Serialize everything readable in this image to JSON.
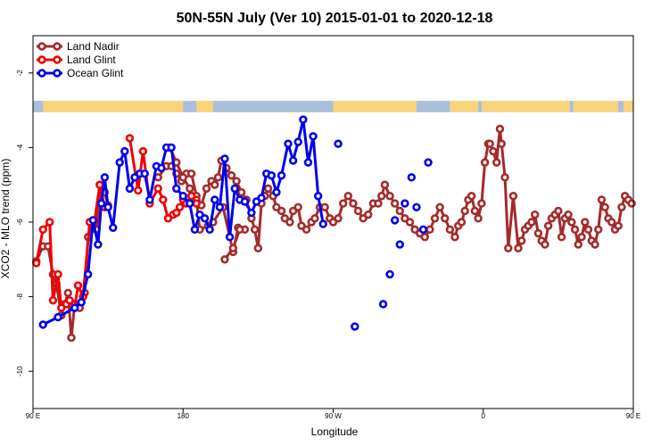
{
  "chart_data": {
    "type": "line",
    "title": "50N-55N July (Ver 10)   2015-01-01 to 2020-12-18",
    "xlabel": "Longitude",
    "ylabel": "XCO2 - MLO trend (ppm)",
    "xlim": [
      90,
      450
    ],
    "ylim": [
      -11,
      -1
    ],
    "x_ticks": [
      {
        "value": 90,
        "label": "90 E"
      },
      {
        "value": 180,
        "label": "180"
      },
      {
        "value": 270,
        "label": "90 W"
      },
      {
        "value": 360,
        "label": "0"
      },
      {
        "value": 450,
        "label": "90 E"
      },
      {
        "value": 540,
        "label": "180"
      }
    ],
    "y_ticks": [
      {
        "value": -2,
        "label": "-2"
      },
      {
        "value": -4,
        "label": "-4"
      },
      {
        "value": -6,
        "label": "-6"
      },
      {
        "value": -8,
        "label": "-8"
      },
      {
        "value": -10,
        "label": "-10"
      }
    ],
    "legend_position": "top-left",
    "land_band": {
      "y_top": -2.75,
      "y_bottom": -3.05,
      "land_color": "#f7d37a",
      "ocean_color": "#a9bfdc"
    },
    "series": [
      {
        "name": "Land Nadir",
        "color": "#a52a2a",
        "segments": [
          [
            [
              92,
              -7.05
            ],
            [
              96,
              -6.65
            ],
            [
              99,
              -6.65
            ],
            [
              102,
              -7.4
            ],
            [
              104,
              -7.65
            ],
            [
              107,
              -8.5
            ],
            [
              109,
              -8.2
            ],
            [
              111,
              -7.9
            ],
            [
              113,
              -9.1
            ],
            [
              115,
              -8.2
            ],
            [
              118,
              -8.3
            ],
            [
              121,
              -7.9
            ],
            [
              123,
              -6.4
            ],
            [
              126,
              -5.95
            ],
            [
              128,
              -6.2
            ],
            [
              131,
              -5.0
            ],
            [
              133,
              -5.2
            ],
            [
              135,
              -5.55
            ]
          ],
          [
            [
              165,
              -4.8
            ],
            [
              170,
              -4.5
            ],
            [
              173,
              -4.5
            ],
            [
              176,
              -4.7
            ],
            [
              179,
              -4.9
            ],
            [
              182,
              -4.7
            ],
            [
              185,
              -4.7
            ],
            [
              188,
              -5.3
            ],
            [
              191,
              -5.55
            ],
            [
              194,
              -5.1
            ],
            [
              197,
              -4.9
            ],
            [
              199,
              -5.0
            ],
            [
              201,
              -4.8
            ],
            [
              203,
              -4.35
            ],
            [
              206,
              -4.55
            ],
            [
              209,
              -4.75
            ],
            [
              212,
              -4.9
            ],
            [
              215,
              -5.2
            ],
            [
              218,
              -5.4
            ],
            [
              221,
              -5.9
            ],
            [
              223,
              -6.2
            ],
            [
              225,
              -6.7
            ],
            [
              227,
              -5.5
            ],
            [
              229,
              -5.3
            ],
            [
              231,
              -5.1
            ],
            [
              234,
              -5.3
            ],
            [
              236,
              -5.6
            ],
            [
              239,
              -5.7
            ],
            [
              241,
              -5.9
            ],
            [
              244,
              -6.0
            ],
            [
              246,
              -5.7
            ],
            [
              249,
              -5.6
            ],
            [
              251,
              -6.1
            ],
            [
              254,
              -6.2
            ],
            [
              257,
              -6.0
            ],
            [
              259,
              -5.9
            ],
            [
              262,
              -5.6
            ],
            [
              265,
              -5.6
            ],
            [
              268,
              -5.9
            ],
            [
              270,
              -6.0
            ],
            [
              273,
              -5.9
            ],
            [
              276,
              -5.5
            ],
            [
              279,
              -5.3
            ],
            [
              282,
              -5.5
            ],
            [
              285,
              -5.7
            ],
            [
              288,
              -5.9
            ],
            [
              291,
              -5.8
            ],
            [
              294,
              -5.5
            ],
            [
              297,
              -5.5
            ],
            [
              299,
              -5.3
            ],
            [
              301,
              -5.0
            ],
            [
              304,
              -5.3
            ],
            [
              307,
              -5.5
            ],
            [
              310,
              -5.7
            ],
            [
              313,
              -5.9
            ],
            [
              316,
              -6.0
            ],
            [
              319,
              -6.2
            ],
            [
              322,
              -6.3
            ],
            [
              325,
              -6.4
            ],
            [
              328,
              -6.2
            ],
            [
              331,
              -5.9
            ],
            [
              334,
              -5.6
            ],
            [
              337,
              -5.9
            ],
            [
              340,
              -6.2
            ],
            [
              343,
              -6.4
            ],
            [
              345,
              -6.1
            ],
            [
              347,
              -6.0
            ],
            [
              349,
              -5.7
            ],
            [
              351,
              -5.4
            ],
            [
              353,
              -5.3
            ],
            [
              355,
              -5.7
            ],
            [
              357,
              -5.9
            ],
            [
              359,
              -5.5
            ],
            [
              361,
              -4.4
            ],
            [
              363,
              -3.9
            ],
            [
              364,
              -3.9
            ],
            [
              366,
              -4.1
            ],
            [
              368,
              -4.4
            ],
            [
              370,
              -3.5
            ],
            [
              371,
              -3.9
            ],
            [
              373,
              -4.8
            ],
            [
              375,
              -6.7
            ],
            [
              378,
              -5.3
            ],
            [
              381,
              -6.7
            ],
            [
              383,
              -6.5
            ],
            [
              385,
              -6.2
            ],
            [
              387,
              -6.1
            ],
            [
              389,
              -6.0
            ],
            [
              391,
              -5.8
            ],
            [
              393,
              -6.3
            ],
            [
              395,
              -6.5
            ],
            [
              397,
              -6.6
            ],
            [
              399,
              -6.1
            ],
            [
              401,
              -5.9
            ],
            [
              403,
              -5.8
            ],
            [
              405,
              -5.7
            ],
            [
              407,
              -6.4
            ],
            [
              409,
              -5.9
            ],
            [
              411,
              -5.8
            ],
            [
              413,
              -6.0
            ],
            [
              415,
              -6.2
            ],
            [
              417,
              -6.6
            ],
            [
              419,
              -6.4
            ],
            [
              421,
              -6.0
            ],
            [
              423,
              -6.2
            ],
            [
              425,
              -6.5
            ],
            [
              427,
              -6.6
            ],
            [
              429,
              -6.2
            ],
            [
              431,
              -5.4
            ],
            [
              433,
              -5.6
            ],
            [
              435,
              -5.9
            ],
            [
              437,
              -6.0
            ],
            [
              439,
              -6.2
            ],
            [
              441,
              -6.1
            ],
            [
              443,
              -5.6
            ],
            [
              445,
              -5.3
            ],
            [
              447,
              -5.4
            ],
            [
              449,
              -5.5
            ]
          ],
          [
            [
              172,
              -4.0
            ],
            [
              176,
              -4.4
            ],
            [
              180,
              -4.8
            ],
            [
              184,
              -5.1
            ],
            [
              188,
              -5.4
            ],
            [
              190,
              -6.2
            ],
            [
              195,
              -6.1
            ],
            [
              198,
              -6.0
            ],
            [
              204,
              -5.6
            ],
            [
              210,
              -6.8
            ],
            [
              213,
              -6.15
            ],
            [
              217,
              -6.2
            ]
          ],
          [
            [
              205,
              -7.0
            ],
            [
              210,
              -6.7
            ],
            [
              214,
              -6.2
            ]
          ]
        ]
      },
      {
        "name": "Land Glint",
        "color": "#ee0000",
        "segments": [
          [
            [
              92,
              -7.1
            ],
            [
              96,
              -6.2
            ],
            [
              100,
              -6.0
            ],
            [
              102,
              -8.1
            ],
            [
              105,
              -7.4
            ],
            [
              107,
              -8.3
            ],
            [
              110,
              -8.2
            ],
            [
              112,
              -8.1
            ],
            [
              115,
              -8.3
            ],
            [
              117,
              -7.7
            ],
            [
              120,
              -8.0
            ],
            [
              124,
              -6.0
            ],
            [
              127,
              -5.95
            ],
            [
              130,
              -5.0
            ],
            [
              133,
              -5.6
            ]
          ],
          [
            [
              148,
              -3.75
            ],
            [
              153,
              -5.15
            ],
            [
              156,
              -4.1
            ],
            [
              160,
              -5.5
            ],
            [
              165,
              -5.1
            ],
            [
              168,
              -5.4
            ],
            [
              171,
              -5.9
            ],
            [
              174,
              -5.8
            ],
            [
              176,
              -5.75
            ],
            [
              178,
              -5.6
            ],
            [
              180,
              -5.4
            ],
            [
              182,
              -5.5
            ],
            [
              185,
              -5.3
            ],
            [
              188,
              -5.5
            ]
          ]
        ]
      },
      {
        "name": "Ocean Glint",
        "color": "#0000ee",
        "segments": [
          [
            [
              96,
              -8.75
            ],
            [
              105,
              -8.55
            ],
            [
              115,
              -8.3
            ],
            [
              119,
              -8.15
            ],
            [
              123,
              -7.4
            ],
            [
              126,
              -5.95
            ],
            [
              129,
              -6.6
            ],
            [
              131,
              -5.5
            ],
            [
              133,
              -4.8
            ],
            [
              135,
              -5.6
            ],
            [
              138,
              -6.15
            ],
            [
              142,
              -4.4
            ],
            [
              145,
              -4.1
            ],
            [
              148,
              -5.1
            ],
            [
              151,
              -4.8
            ],
            [
              154,
              -4.7
            ],
            [
              157,
              -4.7
            ],
            [
              160,
              -5.4
            ],
            [
              164,
              -4.5
            ],
            [
              167,
              -4.55
            ],
            [
              170,
              -4.0
            ],
            [
              173,
              -4.0
            ],
            [
              176,
              -5.1
            ],
            [
              180,
              -5.3
            ],
            [
              184,
              -5.5
            ],
            [
              187,
              -6.2
            ],
            [
              190,
              -5.8
            ],
            [
              193,
              -5.9
            ],
            [
              196,
              -6.2
            ],
            [
              199,
              -5.4
            ],
            [
              202,
              -5.6
            ],
            [
              205,
              -4.3
            ],
            [
              208,
              -6.4
            ],
            [
              211,
              -5.1
            ],
            [
              214,
              -5.4
            ],
            [
              217,
              -5.45
            ],
            [
              221,
              -5.75
            ],
            [
              224,
              -5.45
            ],
            [
              227,
              -5.35
            ],
            [
              230,
              -4.7
            ],
            [
              233,
              -4.75
            ],
            [
              236,
              -5.2
            ],
            [
              239,
              -4.75
            ],
            [
              243,
              -3.9
            ],
            [
              246,
              -4.35
            ],
            [
              249,
              -3.85
            ],
            [
              252,
              -3.25
            ],
            [
              255,
              -4.4
            ],
            [
              258,
              -3.7
            ],
            [
              261,
              -5.3
            ],
            [
              264,
              -6.05
            ]
          ]
        ],
        "points": [
          [
            273,
            -3.9
          ],
          [
            283,
            -8.8
          ],
          [
            300,
            -8.2
          ],
          [
            304,
            -7.4
          ],
          [
            307,
            -5.95
          ],
          [
            310,
            -6.6
          ],
          [
            313,
            -5.5
          ],
          [
            317,
            -4.8
          ],
          [
            320,
            -5.6
          ],
          [
            324,
            -6.2
          ],
          [
            327,
            -4.4
          ]
        ]
      }
    ]
  }
}
